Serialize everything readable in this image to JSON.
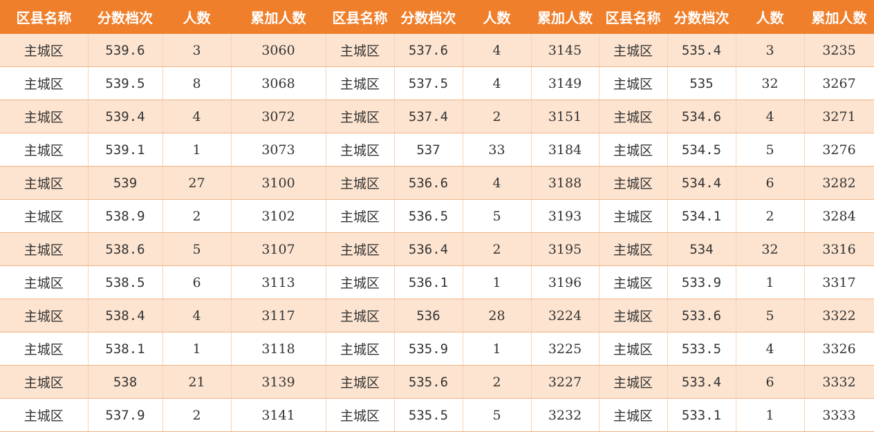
{
  "table": {
    "headers": [
      "区县名称",
      "分数档次",
      "人数",
      "累加人数",
      "区县名称",
      "分数档次",
      "人数",
      "累加人数",
      "区县名称",
      "分数档次",
      "人数",
      "累加人数"
    ],
    "rows": [
      [
        "主城区",
        "539.6",
        "3",
        "3060",
        "主城区",
        "537.6",
        "4",
        "3145",
        "主城区",
        "535.4",
        "3",
        "3235"
      ],
      [
        "主城区",
        "539.5",
        "8",
        "3068",
        "主城区",
        "537.5",
        "4",
        "3149",
        "主城区",
        "535",
        "32",
        "3267"
      ],
      [
        "主城区",
        "539.4",
        "4",
        "3072",
        "主城区",
        "537.4",
        "2",
        "3151",
        "主城区",
        "534.6",
        "4",
        "3271"
      ],
      [
        "主城区",
        "539.1",
        "1",
        "3073",
        "主城区",
        "537",
        "33",
        "3184",
        "主城区",
        "534.5",
        "5",
        "3276"
      ],
      [
        "主城区",
        "539",
        "27",
        "3100",
        "主城区",
        "536.6",
        "4",
        "3188",
        "主城区",
        "534.4",
        "6",
        "3282"
      ],
      [
        "主城区",
        "538.9",
        "2",
        "3102",
        "主城区",
        "536.5",
        "5",
        "3193",
        "主城区",
        "534.1",
        "2",
        "3284"
      ],
      [
        "主城区",
        "538.6",
        "5",
        "3107",
        "主城区",
        "536.4",
        "2",
        "3195",
        "主城区",
        "534",
        "32",
        "3316"
      ],
      [
        "主城区",
        "538.5",
        "6",
        "3113",
        "主城区",
        "536.1",
        "1",
        "3196",
        "主城区",
        "533.9",
        "1",
        "3317"
      ],
      [
        "主城区",
        "538.4",
        "4",
        "3117",
        "主城区",
        "536",
        "28",
        "3224",
        "主城区",
        "533.6",
        "5",
        "3322"
      ],
      [
        "主城区",
        "538.1",
        "1",
        "3118",
        "主城区",
        "535.9",
        "1",
        "3225",
        "主城区",
        "533.5",
        "4",
        "3326"
      ],
      [
        "主城区",
        "538",
        "21",
        "3139",
        "主城区",
        "535.6",
        "2",
        "3227",
        "主城区",
        "533.4",
        "6",
        "3332"
      ],
      [
        "主城区",
        "537.9",
        "2",
        "3141",
        "主城区",
        "535.5",
        "5",
        "3232",
        "主城区",
        "533.1",
        "1",
        "3333"
      ]
    ]
  },
  "colors": {
    "header_bg": "#f07f2b",
    "header_text": "#ffffff",
    "odd_row_bg": "#fde4d0",
    "even_row_bg": "#ffffff",
    "border": "#f4b183"
  }
}
